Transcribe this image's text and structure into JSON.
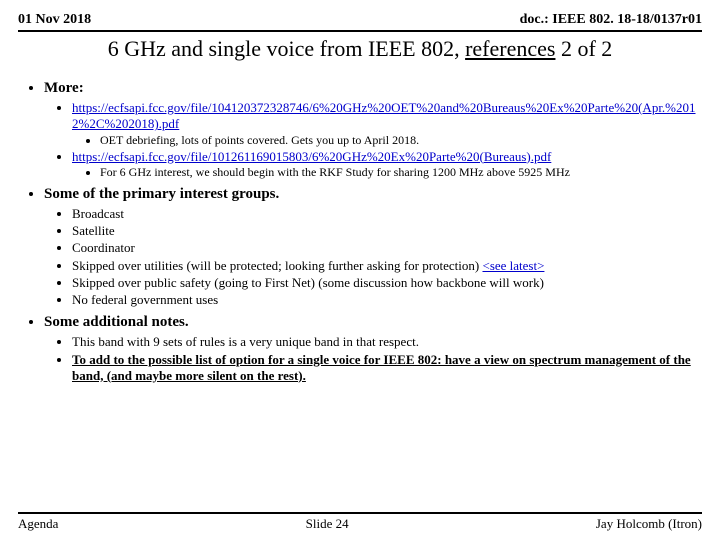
{
  "header": {
    "date": "01 Nov 2018",
    "doc": "doc.: IEEE 802. 18-18/0137r01"
  },
  "title": {
    "prefix": "6 GHz and single voice from IEEE 802, ",
    "underlined": "references",
    "suffix": " 2 of 2"
  },
  "more": {
    "heading": "More:",
    "link1": "https://ecfsapi.fcc.gov/file/104120372328746/6%20GHz%20OET%20and%20Bureaus%20Ex%20Parte%20(Apr.%2012%2C%202018).pdf",
    "link1_note": "OET debriefing, lots of points covered. Gets you up to April 2018.",
    "link2": "https://ecfsapi.fcc.gov/file/101261169015803/6%20GHz%20Ex%20Parte%20(Bureaus).pdf",
    "link2_note": "For 6 GHz interest, we should begin with the RKF Study for sharing 1200 MHz above 5925 MHz"
  },
  "primary": {
    "heading": "Some of the primary interest groups.",
    "i1": "Broadcast",
    "i2": "Satellite",
    "i3": "Coordinator",
    "i4a": "Skipped over utilities (will be protected; looking further asking for protection) ",
    "i4link": "<see latest>",
    "i5": "Skipped over public safety (going to First Net) (some discussion how backbone will work)",
    "i6": " No federal government uses"
  },
  "notes": {
    "heading": "Some additional notes.",
    "n1": "This band with 9 sets of rules is a very unique band in that respect.",
    "n2": "To add to the possible list of option for a single voice for IEEE 802: have a view on spectrum management of the band, (and maybe more silent on the rest)."
  },
  "footer": {
    "left": "Agenda",
    "center": "Slide 24",
    "right": "Jay Holcomb (Itron)"
  }
}
